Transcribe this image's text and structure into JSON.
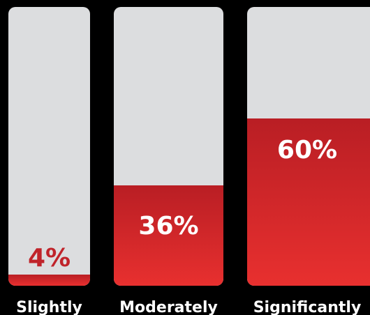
{
  "chart_data": {
    "type": "bar",
    "categories": [
      "Slightly",
      "Moderately",
      "Significantly"
    ],
    "values": [
      4,
      36,
      60
    ],
    "value_labels": [
      "4%",
      "36%",
      "60%"
    ],
    "ylim": [
      0,
      100
    ],
    "grid": false,
    "colors": {
      "background": "#000000",
      "track": "#dcdddf",
      "fill_top": "#b91e24",
      "fill_bottom": "#e8302f",
      "label_on_track": "#c0232a",
      "label_on_fill": "#ffffff",
      "category_text": "#ffffff"
    }
  }
}
